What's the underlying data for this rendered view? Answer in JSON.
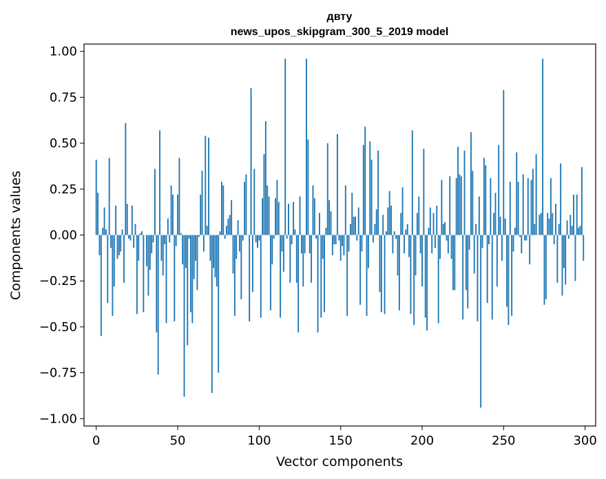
{
  "chart_data": {
    "type": "bar",
    "title": "двту",
    "subtitle": "news_upos_skipgram_300_5_2019 model",
    "xlabel": "Vector components",
    "ylabel": "Components values",
    "xlim": [
      -7.5,
      306.5
    ],
    "ylim": [
      -1.04,
      1.04
    ],
    "xticks": [
      0,
      50,
      100,
      150,
      200,
      250,
      300
    ],
    "xtick_labels": [
      "0",
      "50",
      "100",
      "150",
      "200",
      "250",
      "300"
    ],
    "yticks": [
      1.0,
      0.75,
      0.5,
      0.25,
      0.0,
      -0.25,
      -0.5,
      -0.75,
      -1.0
    ],
    "ytick_labels": [
      "1.00",
      "0.75",
      "0.50",
      "0.25",
      "0.00",
      "−0.25",
      "−0.50",
      "−0.75",
      "−1.00"
    ],
    "grid": false,
    "bar_color": "#1f77b4",
    "x": [
      0,
      1,
      2,
      3,
      4,
      5,
      6,
      7,
      8,
      9,
      10,
      11,
      12,
      13,
      14,
      15,
      16,
      17,
      18,
      19,
      20,
      21,
      22,
      23,
      24,
      25,
      26,
      27,
      28,
      29,
      30,
      31,
      32,
      33,
      34,
      35,
      36,
      37,
      38,
      39,
      40,
      41,
      42,
      43,
      44,
      45,
      46,
      47,
      48,
      49,
      50,
      51,
      52,
      53,
      54,
      55,
      56,
      57,
      58,
      59,
      60,
      61,
      62,
      63,
      64,
      65,
      66,
      67,
      68,
      69,
      70,
      71,
      72,
      73,
      74,
      75,
      76,
      77,
      78,
      79,
      80,
      81,
      82,
      83,
      84,
      85,
      86,
      87,
      88,
      89,
      90,
      91,
      92,
      93,
      94,
      95,
      96,
      97,
      98,
      99,
      100,
      101,
      102,
      103,
      104,
      105,
      106,
      107,
      108,
      109,
      110,
      111,
      112,
      113,
      114,
      115,
      116,
      117,
      118,
      119,
      120,
      121,
      122,
      123,
      124,
      125,
      126,
      127,
      128,
      129,
      130,
      131,
      132,
      133,
      134,
      135,
      136,
      137,
      138,
      139,
      140,
      141,
      142,
      143,
      144,
      145,
      146,
      147,
      148,
      149,
      150,
      151,
      152,
      153,
      154,
      155,
      156,
      157,
      158,
      159,
      160,
      161,
      162,
      163,
      164,
      165,
      166,
      167,
      168,
      169,
      170,
      171,
      172,
      173,
      174,
      175,
      176,
      177,
      178,
      179,
      180,
      181,
      182,
      183,
      184,
      185,
      186,
      187,
      188,
      189,
      190,
      191,
      192,
      193,
      194,
      195,
      196,
      197,
      198,
      199,
      200,
      201,
      202,
      203,
      204,
      205,
      206,
      207,
      208,
      209,
      210,
      211,
      212,
      213,
      214,
      215,
      216,
      217,
      218,
      219,
      220,
      221,
      222,
      223,
      224,
      225,
      226,
      227,
      228,
      229,
      230,
      231,
      232,
      233,
      234,
      235,
      236,
      237,
      238,
      239,
      240,
      241,
      242,
      243,
      244,
      245,
      246,
      247,
      248,
      249,
      250,
      251,
      252,
      253,
      254,
      255,
      256,
      257,
      258,
      259,
      260,
      261,
      262,
      263,
      264,
      265,
      266,
      267,
      268,
      269,
      270,
      271,
      272,
      273,
      274,
      275,
      276,
      277,
      278,
      279,
      280,
      281,
      282,
      283,
      284,
      285,
      286,
      287,
      288,
      289,
      290,
      291,
      292,
      293,
      294,
      295,
      296,
      297,
      298,
      299
    ],
    "values": [
      0.41,
      0.23,
      -0.11,
      -0.55,
      0.04,
      0.15,
      0.03,
      -0.37,
      0.42,
      -0.07,
      -0.44,
      -0.28,
      0.16,
      -0.13,
      -0.11,
      -0.09,
      0.03,
      -0.26,
      0.61,
      0.17,
      -0.02,
      -0.03,
      0.16,
      -0.07,
      0.06,
      -0.43,
      -0.14,
      0.01,
      0.02,
      -0.42,
      0.0,
      -0.17,
      -0.33,
      -0.19,
      -0.1,
      -0.04,
      0.36,
      -0.53,
      -0.76,
      0.57,
      -0.14,
      -0.22,
      -0.05,
      -0.48,
      0.09,
      -0.04,
      0.27,
      0.22,
      -0.47,
      -0.06,
      0.22,
      0.42,
      0.01,
      -0.16,
      -0.88,
      -0.18,
      -0.6,
      -0.02,
      -0.42,
      -0.48,
      -0.24,
      -0.14,
      -0.3,
      -0.01,
      0.22,
      0.35,
      -0.09,
      0.54,
      0.05,
      0.53,
      -0.14,
      -0.86,
      -0.18,
      -0.23,
      -0.28,
      -0.75,
      0.02,
      0.29,
      0.27,
      -0.02,
      0.05,
      0.09,
      0.11,
      0.19,
      -0.21,
      -0.44,
      -0.13,
      0.08,
      -0.09,
      -0.35,
      -0.03,
      0.29,
      0.33,
      0.0,
      -0.47,
      0.8,
      -0.31,
      0.36,
      -0.04,
      -0.07,
      -0.03,
      -0.45,
      0.2,
      0.44,
      0.62,
      0.27,
      0.21,
      -0.41,
      -0.16,
      -0.02,
      0.2,
      0.3,
      0.18,
      -0.45,
      -0.09,
      -0.2,
      0.96,
      -0.02,
      0.17,
      -0.26,
      -0.05,
      0.18,
      0.03,
      -0.26,
      -0.53,
      0.21,
      -0.1,
      -0.28,
      -0.1,
      0.96,
      0.52,
      -0.1,
      -0.26,
      0.27,
      0.2,
      -0.02,
      -0.53,
      0.12,
      -0.45,
      -0.13,
      -0.42,
      0.04,
      0.5,
      0.19,
      0.13,
      -0.11,
      -0.05,
      -0.05,
      0.55,
      -0.03,
      -0.14,
      -0.06,
      -0.11,
      0.27,
      -0.44,
      -0.09,
      0.06,
      0.23,
      0.1,
      0.1,
      -0.03,
      0.15,
      -0.38,
      -0.09,
      0.49,
      0.59,
      -0.44,
      -0.18,
      0.51,
      0.41,
      -0.04,
      0.06,
      0.14,
      0.46,
      -0.31,
      -0.42,
      0.11,
      -0.43,
      0.02,
      0.15,
      0.24,
      0.16,
      -0.1,
      0.02,
      -0.02,
      -0.22,
      -0.41,
      0.12,
      0.26,
      -0.1,
      0.03,
      0.06,
      -0.12,
      -0.43,
      0.57,
      -0.49,
      -0.22,
      0.12,
      0.21,
      -0.1,
      -0.28,
      0.47,
      -0.45,
      -0.52,
      0.04,
      0.15,
      -0.1,
      0.12,
      -0.07,
      0.16,
      -0.48,
      -0.13,
      0.3,
      0.06,
      0.07,
      -0.03,
      -0.1,
      0.32,
      -0.13,
      -0.3,
      -0.3,
      0.31,
      0.48,
      0.33,
      0.32,
      -0.46,
      0.46,
      -0.3,
      -0.4,
      -0.08,
      0.56,
      0.35,
      -0.21,
      0.06,
      -0.47,
      0.21,
      -0.94,
      -0.07,
      0.42,
      0.38,
      -0.37,
      -0.05,
      0.31,
      -0.46,
      0.12,
      0.23,
      -0.28,
      0.49,
      0.1,
      -0.14,
      0.79,
      0.09,
      -0.39,
      -0.49,
      0.29,
      -0.44,
      -0.09,
      0.04,
      0.45,
      0.29,
      -0.01,
      -0.1,
      0.33,
      -0.03,
      -0.03,
      0.31,
      -0.16,
      0.3,
      0.36,
      0.06,
      0.44,
      0.0,
      0.11,
      0.12,
      0.96,
      -0.38,
      -0.35,
      0.12,
      0.09,
      0.31,
      0.12,
      -0.05,
      0.17,
      -0.26,
      0.06,
      0.39,
      -0.33,
      -0.18,
      -0.27,
      0.08,
      -0.02,
      0.11,
      0.05,
      0.22,
      -0.25,
      0.22,
      0.04,
      0.05,
      0.37,
      -0.14
    ],
    "legend": null
  }
}
